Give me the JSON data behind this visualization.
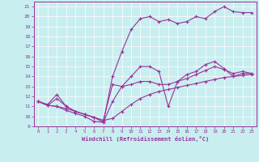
{
  "xlabel": "Windchill (Refroidissement éolien,°C)",
  "bg_color": "#c8eef0",
  "line_color": "#993399",
  "xlim": [
    -0.5,
    23.5
  ],
  "ylim": [
    9.0,
    21.5
  ],
  "yticks": [
    9,
    10,
    11,
    12,
    13,
    14,
    15,
    16,
    17,
    18,
    19,
    20,
    21
  ],
  "xticks": [
    0,
    1,
    2,
    3,
    4,
    5,
    6,
    7,
    8,
    9,
    10,
    11,
    12,
    13,
    14,
    15,
    16,
    17,
    18,
    19,
    20,
    21,
    22,
    23
  ],
  "series": [
    [
      11.5,
      11.1,
      11.0,
      10.8,
      10.5,
      10.2,
      9.9,
      9.6,
      9.8,
      10.5,
      11.2,
      11.8,
      12.2,
      12.5,
      12.7,
      12.9,
      13.1,
      13.3,
      13.5,
      13.7,
      13.9,
      14.0,
      14.1,
      14.2
    ],
    [
      11.5,
      11.1,
      11.0,
      10.6,
      10.3,
      10.0,
      9.5,
      9.4,
      11.5,
      13.0,
      13.2,
      13.5,
      13.5,
      13.2,
      13.2,
      13.5,
      13.8,
      14.2,
      14.6,
      15.0,
      14.7,
      14.3,
      14.5,
      14.3
    ],
    [
      11.5,
      11.1,
      11.8,
      11.0,
      10.5,
      10.2,
      9.9,
      9.4,
      14.0,
      16.5,
      18.7,
      19.8,
      20.0,
      19.5,
      19.7,
      19.3,
      19.5,
      20.0,
      19.8,
      20.5,
      21.0,
      20.5,
      20.4,
      20.4
    ],
    [
      11.5,
      11.2,
      12.2,
      11.0,
      10.5,
      10.2,
      9.9,
      9.6,
      13.2,
      13.0,
      14.0,
      15.0,
      15.0,
      14.5,
      11.0,
      13.5,
      14.2,
      14.5,
      15.2,
      15.5,
      14.8,
      14.0,
      14.3,
      14.3
    ]
  ]
}
